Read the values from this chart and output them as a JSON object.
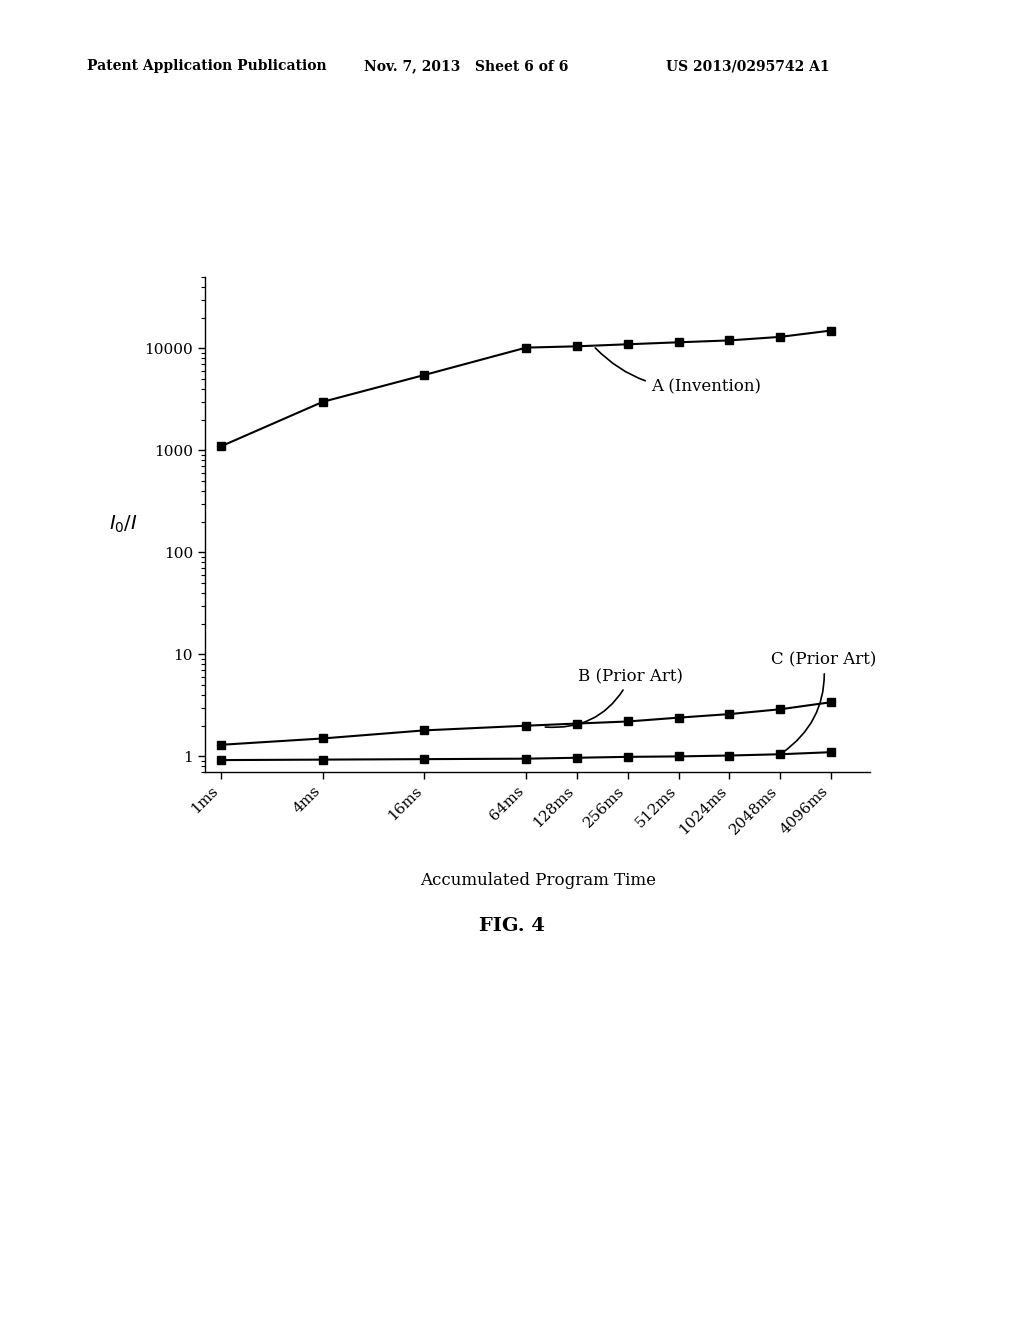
{
  "x_labels": [
    "1ms",
    "4ms",
    "16ms",
    "64ms",
    "128ms",
    "256ms",
    "512ms",
    "1024ms",
    "2048ms",
    "4096ms"
  ],
  "x_values": [
    1,
    4,
    16,
    64,
    128,
    256,
    512,
    1024,
    2048,
    4096
  ],
  "curve_A": [
    1100,
    3000,
    5500,
    10200,
    10500,
    11000,
    11500,
    12000,
    13000,
    15000
  ],
  "curve_B": [
    1.3,
    1.5,
    1.8,
    2.0,
    2.1,
    2.2,
    2.4,
    2.6,
    2.9,
    3.4
  ],
  "curve_C": [
    0.92,
    0.93,
    0.94,
    0.95,
    0.97,
    0.99,
    1.0,
    1.02,
    1.05,
    1.1
  ],
  "label_A": "A (Invention)",
  "label_B": "B (Prior Art)",
  "label_C": "C (Prior Art)",
  "ylabel": "$I_0/I$",
  "xlabel": "Accumulated Program Time",
  "fig_label": "FIG. 4",
  "header_left": "Patent Application Publication",
  "header_mid": "Nov. 7, 2013   Sheet 6 of 6",
  "header_right": "US 2013/0295742 A1",
  "bg_color": "#ffffff",
  "line_color": "#000000",
  "marker": "s",
  "marker_size": 6,
  "line_width": 1.5,
  "ylim_min": 0.7,
  "ylim_max": 50000
}
